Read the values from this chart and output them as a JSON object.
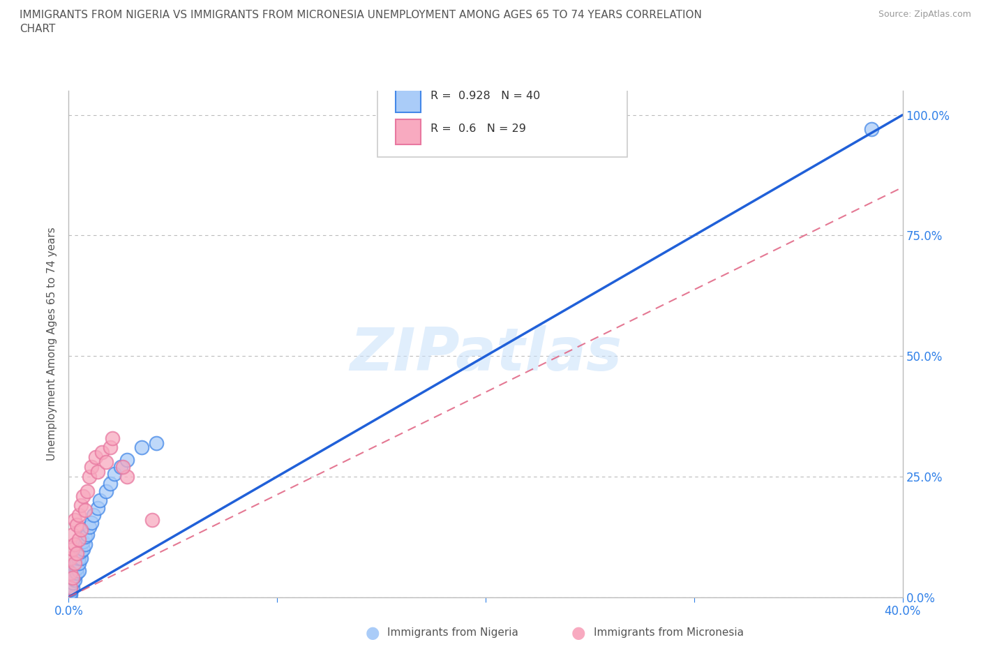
{
  "title_line1": "IMMIGRANTS FROM NIGERIA VS IMMIGRANTS FROM MICRONESIA UNEMPLOYMENT AMONG AGES 65 TO 74 YEARS CORRELATION",
  "title_line2": "CHART",
  "source": "Source: ZipAtlas.com",
  "ylabel": "Unemployment Among Ages 65 to 74 years",
  "xlabel_nigeria": "Immigrants from Nigeria",
  "xlabel_micronesia": "Immigrants from Micronesia",
  "xlim": [
    0.0,
    0.4
  ],
  "ylim": [
    0.0,
    1.05
  ],
  "yticks": [
    0.0,
    0.25,
    0.5,
    0.75,
    1.0
  ],
  "ytick_labels": [
    "0.0%",
    "25.0%",
    "50.0%",
    "75.0%",
    "100.0%"
  ],
  "xticks": [
    0.0,
    0.1,
    0.2,
    0.3,
    0.4
  ],
  "xtick_labels": [
    "0.0%",
    "",
    "",
    "",
    "40.0%"
  ],
  "nigeria_R": 0.928,
  "nigeria_N": 40,
  "micronesia_R": 0.6,
  "micronesia_N": 29,
  "nigeria_color": "#aaccf8",
  "micronesia_color": "#f8aac0",
  "nigeria_line_color": "#2060d8",
  "micronesia_line_color": "#e06080",
  "nigeria_edge_color": "#4488e8",
  "micronesia_edge_color": "#e878a0",
  "watermark": "ZIPatlas",
  "nigeria_line_x0": 0.0,
  "nigeria_line_y0": 0.0,
  "nigeria_line_x1": 0.4,
  "nigeria_line_y1": 1.0,
  "micronesia_line_x0": 0.0,
  "micronesia_line_y0": 0.0,
  "micronesia_line_x1": 0.4,
  "micronesia_line_y1": 0.85,
  "nigeria_scatter_x": [
    0.001,
    0.001,
    0.001,
    0.001,
    0.001,
    0.002,
    0.002,
    0.002,
    0.002,
    0.003,
    0.003,
    0.003,
    0.003,
    0.004,
    0.004,
    0.004,
    0.005,
    0.005,
    0.005,
    0.005,
    0.006,
    0.006,
    0.007,
    0.007,
    0.008,
    0.008,
    0.009,
    0.01,
    0.011,
    0.012,
    0.014,
    0.015,
    0.018,
    0.02,
    0.022,
    0.025,
    0.028,
    0.035,
    0.042,
    0.385
  ],
  "nigeria_scatter_y": [
    0.005,
    0.01,
    0.015,
    0.02,
    0.025,
    0.02,
    0.03,
    0.04,
    0.05,
    0.035,
    0.045,
    0.055,
    0.065,
    0.05,
    0.06,
    0.07,
    0.055,
    0.07,
    0.08,
    0.09,
    0.08,
    0.095,
    0.1,
    0.115,
    0.11,
    0.125,
    0.13,
    0.145,
    0.155,
    0.17,
    0.185,
    0.2,
    0.22,
    0.235,
    0.255,
    0.27,
    0.285,
    0.31,
    0.32,
    0.97
  ],
  "micronesia_scatter_x": [
    0.001,
    0.001,
    0.001,
    0.002,
    0.002,
    0.002,
    0.003,
    0.003,
    0.003,
    0.004,
    0.004,
    0.005,
    0.005,
    0.006,
    0.006,
    0.007,
    0.008,
    0.009,
    0.01,
    0.011,
    0.013,
    0.014,
    0.016,
    0.018,
    0.02,
    0.021,
    0.04,
    0.028,
    0.026
  ],
  "micronesia_scatter_y": [
    0.02,
    0.05,
    0.08,
    0.04,
    0.1,
    0.13,
    0.07,
    0.11,
    0.16,
    0.09,
    0.15,
    0.12,
    0.17,
    0.14,
    0.19,
    0.21,
    0.18,
    0.22,
    0.25,
    0.27,
    0.29,
    0.26,
    0.3,
    0.28,
    0.31,
    0.33,
    0.16,
    0.25,
    0.27
  ]
}
